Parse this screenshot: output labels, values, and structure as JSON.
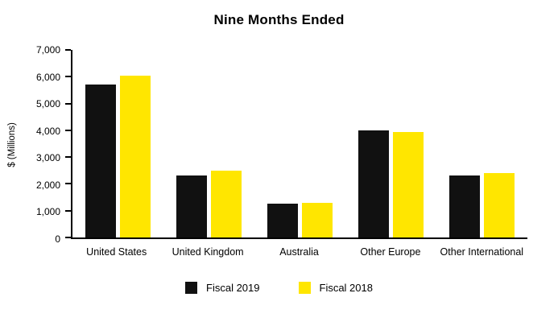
{
  "chart_data": {
    "type": "bar",
    "title": "Nine Months Ended",
    "xlabel": "",
    "ylabel": "$ (Millions)",
    "ylim": [
      0,
      7000
    ],
    "yticks": [
      0,
      1000,
      2000,
      3000,
      4000,
      5000,
      6000,
      7000
    ],
    "grid": false,
    "legend_position": "bottom",
    "categories": [
      "United States",
      "United Kingdom",
      "Australia",
      "Other Europe",
      "Other International"
    ],
    "series": [
      {
        "name": "Fiscal 2019",
        "color": "#111111",
        "values": [
          5700,
          2300,
          1250,
          4000,
          2300
        ]
      },
      {
        "name": "Fiscal 2018",
        "color": "#FFE600",
        "values": [
          6050,
          2500,
          1300,
          3950,
          2400
        ]
      }
    ]
  }
}
